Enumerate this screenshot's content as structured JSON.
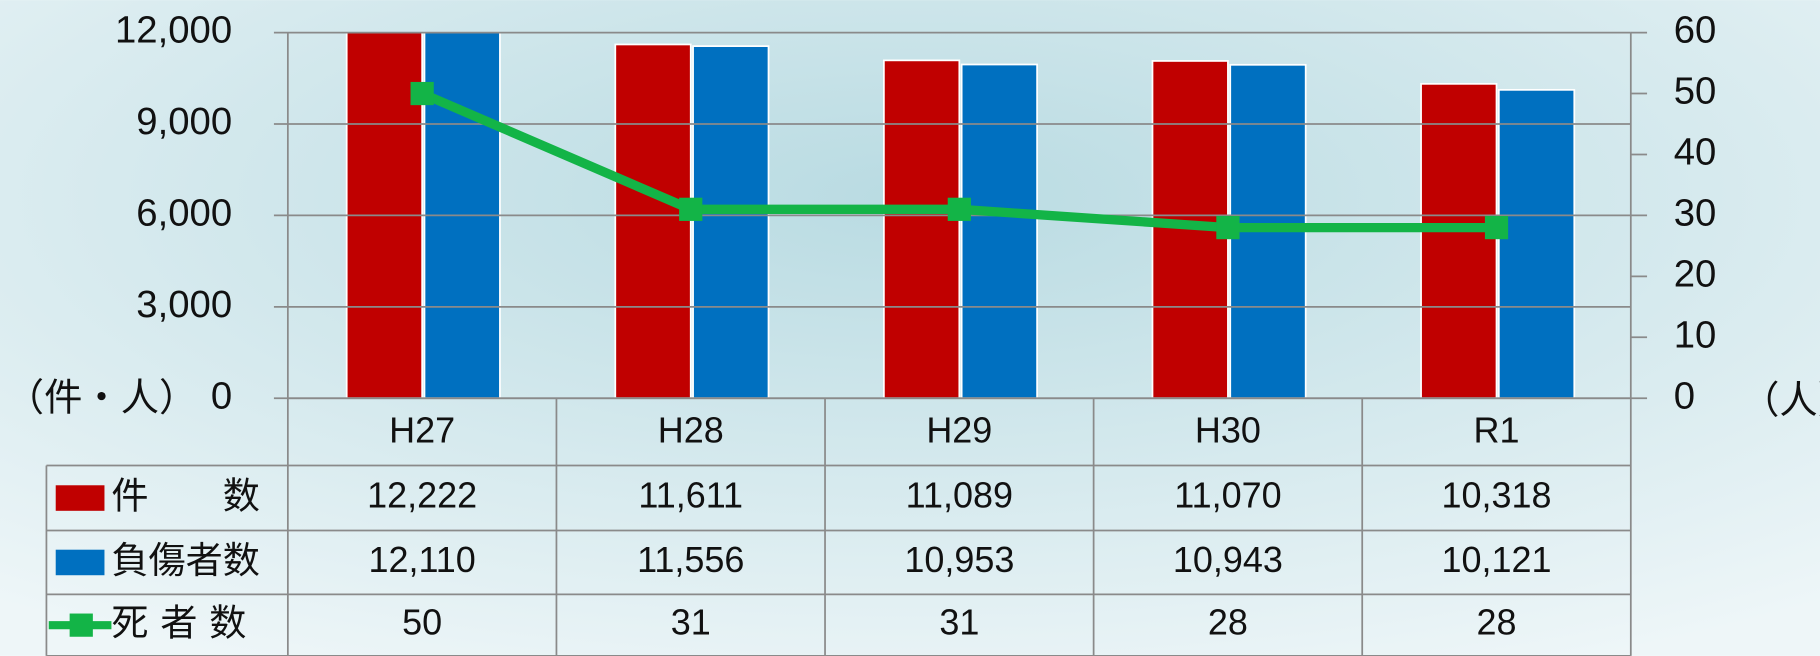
{
  "chart_data": {
    "type": "bar",
    "y_label": "（件・人）",
    "y2_label": "（人）",
    "categories": [
      "H27",
      "H28",
      "H29",
      "H30",
      "R1"
    ],
    "series": [
      {
        "name": "件　　数",
        "color": "#c00000",
        "values": [
          12222,
          11611,
          11089,
          11070,
          10318
        ],
        "value_labels": [
          "12,222",
          "11,611",
          "11,089",
          "11,070",
          "10,318"
        ]
      },
      {
        "name": "負傷者数",
        "color": "#0070c0",
        "values": [
          12110,
          11556,
          10953,
          10943,
          10121
        ],
        "value_labels": [
          "12,110",
          "11,556",
          "10,953",
          "10,943",
          "10,121"
        ]
      },
      {
        "name": "死 者 数",
        "type": "line",
        "axis": "y2",
        "color": "#13b447",
        "values": [
          50,
          31,
          31,
          28,
          28
        ]
      }
    ],
    "ylim": [
      0,
      12000
    ],
    "yticks": [
      0,
      {
        "value": 3000,
        "label": "3,000"
      },
      {
        "value": 6000,
        "label": "6,000"
      },
      {
        "value": 9000,
        "label": "9,000"
      },
      {
        "value": 12000,
        "label": "12,000"
      }
    ],
    "y2lim": [
      0,
      60
    ],
    "y2ticks": [
      0,
      10,
      20,
      30,
      40,
      50,
      60
    ],
    "grid": true
  }
}
